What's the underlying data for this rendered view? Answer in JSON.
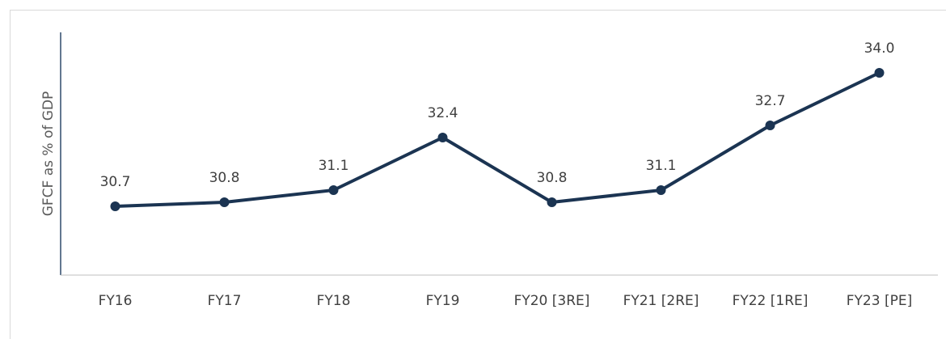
{
  "chart_data": {
    "type": "line",
    "y_label": "GFCF as % of GDP",
    "categories": [
      "FY16",
      "FY17",
      "FY18",
      "FY19",
      "FY20 [3RE]",
      "FY21 [2RE]",
      "FY22 [1RE]",
      "FY23 [PE]"
    ],
    "series": [
      {
        "name": "GFCF as % of GDP",
        "color": "#1b3452",
        "values": [
          30.7,
          30.8,
          31.1,
          32.4,
          30.8,
          31.1,
          32.7,
          34.0
        ],
        "value_labels": [
          "30.7",
          "30.8",
          "31.1",
          "32.4",
          "30.8",
          "31.1",
          "32.7",
          "34.0"
        ]
      }
    ],
    "ylim": [
      29,
      35
    ],
    "grid": false
  }
}
